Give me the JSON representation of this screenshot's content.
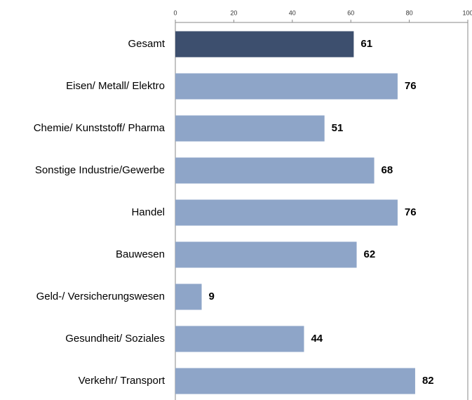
{
  "chart_data": {
    "type": "barh",
    "categories": [
      "Gesamt",
      "Eisen/ Metall/ Elektro",
      "Chemie/ Kunststoff/ Pharma",
      "Sonstige Industrie/Gewerbe",
      "Handel",
      "Bauwesen",
      "Geld-/ Versicherungswesen",
      "Gesundheit/ Soziales",
      "Verkehr/ Transport"
    ],
    "values": [
      61,
      76,
      51,
      68,
      76,
      62,
      9,
      44,
      82
    ],
    "colors": [
      "#3d4f6e",
      "#8ea5c8",
      "#8ea5c8",
      "#8ea5c8",
      "#8ea5c8",
      "#8ea5c8",
      "#8ea5c8",
      "#8ea5c8",
      "#8ea5c8"
    ],
    "xlim": [
      0,
      100
    ],
    "xticks": [
      0,
      20,
      40,
      60,
      80,
      100
    ],
    "grid": false
  }
}
